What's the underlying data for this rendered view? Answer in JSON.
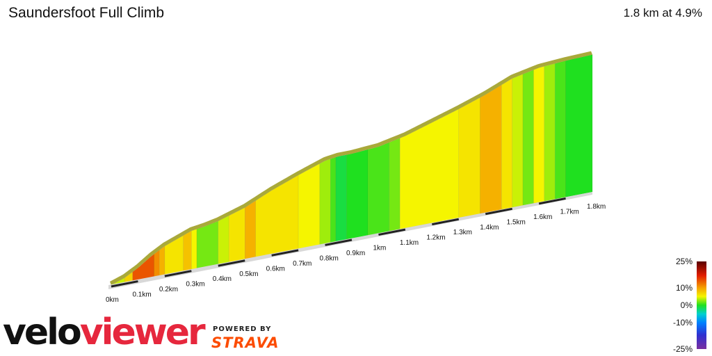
{
  "header": {
    "title": "Saundersfoot Full Climb",
    "summary": "1.8 km at 4.9%"
  },
  "branding": {
    "logo_part1": "velo",
    "logo_part2": "viewer",
    "powered_by": "POWERED BY",
    "strava": "STRAVA",
    "logo_colors": {
      "velo": "#111111",
      "viewer": "#e6273d",
      "strava": "#fc4c02"
    }
  },
  "chart_data": {
    "type": "area",
    "x_unit": "km",
    "distance_ticks": [
      "0km",
      "0.1km",
      "0.2km",
      "0.3km",
      "0.4km",
      "0.5km",
      "0.6km",
      "0.7km",
      "0.8km",
      "0.9km",
      "1km",
      "1.1km",
      "1.2km",
      "1.3km",
      "1.4km",
      "1.5km",
      "1.6km",
      "1.7km",
      "1.8km"
    ],
    "gradient_scale": {
      "labels": [
        "25%",
        "10%",
        "0%",
        "-10%",
        "-25%"
      ],
      "stops": [
        {
          "pct": 25,
          "color": "#5a0000"
        },
        {
          "pct": 17,
          "color": "#e21d00"
        },
        {
          "pct": 10,
          "color": "#f5a000"
        },
        {
          "pct": 5,
          "color": "#f5f500"
        },
        {
          "pct": 0,
          "color": "#1fe01f"
        },
        {
          "pct": -5,
          "color": "#00d0d0"
        },
        {
          "pct": -10,
          "color": "#0080ff"
        },
        {
          "pct": -17,
          "color": "#3030d0"
        },
        {
          "pct": -25,
          "color": "#7a30a0"
        }
      ]
    },
    "profile": [
      {
        "d": 0.0,
        "e": 0.0
      },
      {
        "d": 0.05,
        "e": 2.5
      },
      {
        "d": 0.1,
        "e": 6.5
      },
      {
        "d": 0.15,
        "e": 11.5
      },
      {
        "d": 0.2,
        "e": 15.5
      },
      {
        "d": 0.3,
        "e": 21.0
      },
      {
        "d": 0.35,
        "e": 22.0
      },
      {
        "d": 0.4,
        "e": 23.5
      },
      {
        "d": 0.5,
        "e": 28.0
      },
      {
        "d": 0.6,
        "e": 34.5
      },
      {
        "d": 0.7,
        "e": 40.0
      },
      {
        "d": 0.8,
        "e": 45.0
      },
      {
        "d": 0.85,
        "e": 46.0
      },
      {
        "d": 0.9,
        "e": 46.0
      },
      {
        "d": 1.0,
        "e": 47.0
      },
      {
        "d": 1.1,
        "e": 50.0
      },
      {
        "d": 1.2,
        "e": 54.5
      },
      {
        "d": 1.3,
        "e": 59.0
      },
      {
        "d": 1.4,
        "e": 64.0
      },
      {
        "d": 1.5,
        "e": 70.0
      },
      {
        "d": 1.6,
        "e": 73.0
      },
      {
        "d": 1.7,
        "e": 74.0
      },
      {
        "d": 1.8,
        "e": 74.5
      }
    ],
    "gradient_segments": [
      {
        "d0": 0.0,
        "d1": 0.05,
        "grade": 4
      },
      {
        "d0": 0.05,
        "d1": 0.08,
        "grade": 7
      },
      {
        "d0": 0.08,
        "d1": 0.16,
        "grade": 14
      },
      {
        "d0": 0.16,
        "d1": 0.18,
        "grade": 11
      },
      {
        "d0": 0.18,
        "d1": 0.2,
        "grade": 9
      },
      {
        "d0": 0.2,
        "d1": 0.27,
        "grade": 6
      },
      {
        "d0": 0.27,
        "d1": 0.3,
        "grade": 8
      },
      {
        "d0": 0.3,
        "d1": 0.32,
        "grade": 5
      },
      {
        "d0": 0.32,
        "d1": 0.4,
        "grade": 2
      },
      {
        "d0": 0.4,
        "d1": 0.44,
        "grade": 4
      },
      {
        "d0": 0.44,
        "d1": 0.5,
        "grade": 6
      },
      {
        "d0": 0.5,
        "d1": 0.54,
        "grade": 9
      },
      {
        "d0": 0.54,
        "d1": 0.7,
        "grade": 6
      },
      {
        "d0": 0.7,
        "d1": 0.78,
        "grade": 5
      },
      {
        "d0": 0.78,
        "d1": 0.82,
        "grade": 3
      },
      {
        "d0": 0.82,
        "d1": 0.84,
        "grade": 1
      },
      {
        "d0": 0.84,
        "d1": 0.88,
        "grade": -1
      },
      {
        "d0": 0.88,
        "d1": 0.96,
        "grade": 0
      },
      {
        "d0": 0.96,
        "d1": 1.04,
        "grade": 1
      },
      {
        "d0": 1.04,
        "d1": 1.08,
        "grade": 2
      },
      {
        "d0": 1.08,
        "d1": 1.3,
        "grade": 5
      },
      {
        "d0": 1.3,
        "d1": 1.38,
        "grade": 6
      },
      {
        "d0": 1.38,
        "d1": 1.46,
        "grade": 9
      },
      {
        "d0": 1.46,
        "d1": 1.5,
        "grade": 6
      },
      {
        "d0": 1.5,
        "d1": 1.54,
        "grade": 4
      },
      {
        "d0": 1.54,
        "d1": 1.58,
        "grade": 2
      },
      {
        "d0": 1.58,
        "d1": 1.62,
        "grade": 5
      },
      {
        "d0": 1.62,
        "d1": 1.66,
        "grade": 3
      },
      {
        "d0": 1.66,
        "d1": 1.7,
        "grade": 1
      },
      {
        "d0": 1.7,
        "d1": 1.8,
        "grade": 0
      }
    ]
  }
}
